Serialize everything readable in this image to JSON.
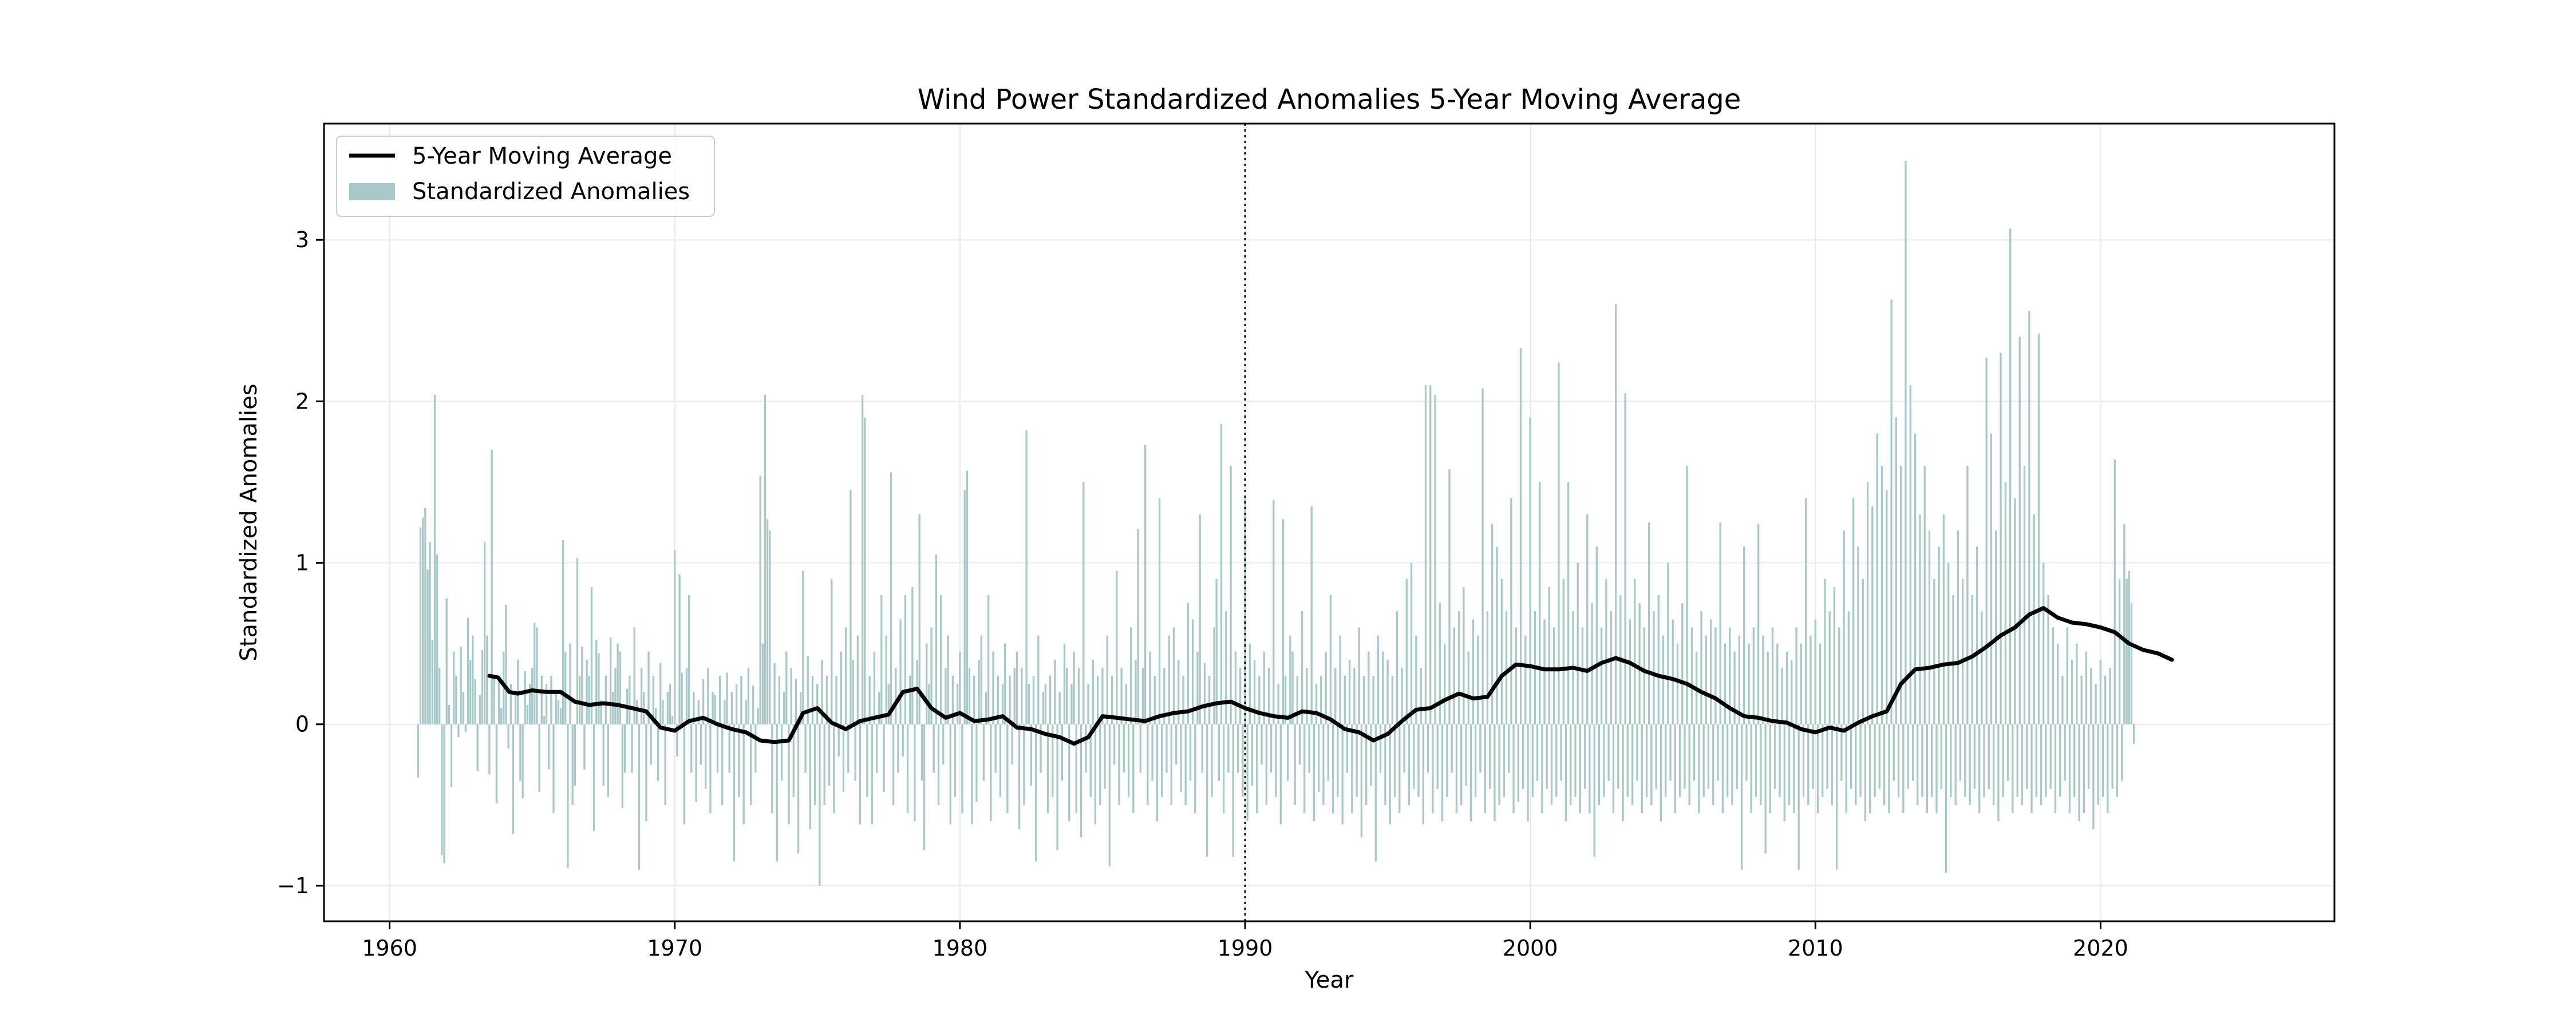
{
  "chart_data": {
    "type": "bar",
    "title": "Wind Power Standardized Anomalies 5-Year Moving Average",
    "xlabel": "Year",
    "ylabel": "Standardized Anomalies",
    "xlim": [
      1957.7,
      2028.2
    ],
    "ylim": [
      -1.22,
      3.72
    ],
    "x_ticks": [
      1960,
      1970,
      1980,
      1990,
      2000,
      2010,
      2020
    ],
    "y_ticks": [
      -1,
      0,
      1,
      2,
      3
    ],
    "grid": true,
    "legend_position": "upper-left",
    "vertical_line": {
      "x": 1990,
      "style": "dotted"
    },
    "colors": {
      "bars": "#a9c9c8",
      "moving_average": "#000000"
    },
    "series": [
      {
        "name": "Standardized Anomalies",
        "kind": "monthly-bars",
        "start": 1961.0,
        "step": 0.08333,
        "values": [
          -0.33,
          1.22,
          1.28,
          1.34,
          0.96,
          1.13,
          0.52,
          2.04,
          1.05,
          0.35,
          -0.81,
          -0.86,
          0.78,
          0.12,
          -0.39,
          0.45,
          0.3,
          -0.08,
          0.48,
          0.2,
          -0.05,
          0.66,
          0.4,
          0.55,
          0.28,
          -0.29,
          0.18,
          0.46,
          1.13,
          0.55,
          -0.31,
          1.7,
          0.3,
          -0.49,
          0.3,
          0.1,
          0.45,
          0.74,
          -0.15,
          0.25,
          -0.68,
          0.2,
          0.4,
          -0.35,
          -0.46,
          0.33,
          0.12,
          0.25,
          0.35,
          0.63,
          0.6,
          -0.42,
          0.3,
          0.05,
          0.25,
          -0.28,
          0.3,
          -0.55,
          0.2,
          0.15,
          0.1,
          1.14,
          0.45,
          -0.89,
          0.5,
          -0.5,
          -0.38,
          1.03,
          0.3,
          0.48,
          -0.28,
          0.4,
          0.3,
          0.85,
          -0.66,
          0.52,
          0.44,
          0.15,
          -0.38,
          0.3,
          -0.45,
          0.54,
          0.2,
          0.35,
          0.5,
          0.45,
          -0.52,
          -0.3,
          0.22,
          0.3,
          -0.3,
          0.6,
          0.15,
          -0.9,
          0.35,
          0.2,
          -0.6,
          0.45,
          -0.25,
          0.3,
          0.1,
          -0.35,
          0.38,
          0.15,
          -0.5,
          0.2,
          0.25,
          0.05,
          1.08,
          -0.2,
          0.93,
          0.32,
          -0.62,
          0.35,
          0.8,
          -0.3,
          0.2,
          -0.48,
          0.15,
          -0.25,
          0.28,
          -0.4,
          0.35,
          -0.55,
          0.2,
          0.18,
          -0.3,
          0.3,
          -0.5,
          0.15,
          0.32,
          -0.3,
          0.2,
          -0.85,
          0.25,
          -0.45,
          0.3,
          -0.62,
          0.15,
          0.35,
          -0.5,
          0.24,
          -0.3,
          0.1,
          1.54,
          0.5,
          2.04,
          1.27,
          1.2,
          -0.55,
          0.38,
          -0.85,
          0.3,
          -0.35,
          0.2,
          0.45,
          -0.62,
          0.35,
          -0.45,
          0.28,
          -0.8,
          0.2,
          0.95,
          -0.3,
          0.42,
          -0.65,
          0.3,
          -0.5,
          0.25,
          -1.0,
          0.4,
          -0.5,
          0.3,
          -0.38,
          0.9,
          -0.55,
          0.3,
          -0.2,
          0.45,
          -0.42,
          0.6,
          -0.3,
          1.45,
          0.4,
          -0.35,
          0.55,
          -0.62,
          2.04,
          1.9,
          -0.45,
          0.3,
          -0.62,
          0.45,
          -0.3,
          0.2,
          0.8,
          -0.42,
          0.55,
          0.25,
          1.56,
          -0.5,
          0.35,
          -0.3,
          0.65,
          -0.2,
          0.8,
          -0.55,
          0.3,
          0.85,
          -0.6,
          0.4,
          1.3,
          -0.35,
          -0.78,
          0.5,
          0.25,
          0.6,
          -0.3,
          1.05,
          -0.5,
          0.8,
          -0.25,
          0.35,
          0.55,
          -0.62,
          0.3,
          -0.45,
          0.25,
          0.45,
          -0.55,
          1.45,
          1.57,
          0.35,
          -0.62,
          0.3,
          -0.48,
          0.4,
          0.55,
          -0.35,
          0.2,
          0.8,
          -0.6,
          0.45,
          -0.3,
          0.3,
          -0.45,
          0.25,
          0.5,
          -0.55,
          0.3,
          -0.25,
          0.35,
          0.45,
          -0.65,
          0.35,
          -0.5,
          1.82,
          0.25,
          -0.38,
          0.3,
          -0.85,
          0.55,
          -0.3,
          0.2,
          0.25,
          -0.55,
          0.3,
          -0.45,
          0.4,
          -0.78,
          0.2,
          -0.35,
          0.5,
          0.35,
          -0.6,
          0.25,
          0.45,
          -0.55,
          0.35,
          -0.7,
          1.5,
          -0.3,
          0.25,
          -0.45,
          0.4,
          -0.62,
          0.3,
          -0.5,
          0.35,
          -0.4,
          0.55,
          -0.88,
          0.3,
          -0.25,
          0.95,
          -0.5,
          0.35,
          -0.3,
          0.25,
          -0.45,
          0.6,
          -0.55,
          0.4,
          1.21,
          -0.3,
          0.35,
          1.73,
          -0.5,
          0.45,
          -0.35,
          0.3,
          -0.6,
          1.4,
          -0.45,
          0.35,
          -0.3,
          0.55,
          -0.5,
          0.6,
          -0.25,
          0.4,
          -0.42,
          0.3,
          -0.5,
          0.75,
          -0.35,
          0.65,
          -0.55,
          0.45,
          1.3,
          -0.3,
          0.38,
          -0.82,
          0.3,
          -0.45,
          0.6,
          0.9,
          -0.35,
          1.86,
          -0.55,
          0.7,
          -0.3,
          1.6,
          -0.82,
          0.45,
          -0.3,
          0.35,
          -0.45,
          1.4,
          -0.6,
          0.5,
          -0.38,
          0.4,
          -0.55,
          0.3,
          -0.25,
          0.45,
          -0.5,
          0.35,
          -0.3,
          1.39,
          -0.45,
          0.25,
          -0.62,
          1.27,
          0.3,
          -0.35,
          0.55,
          0.45,
          -0.5,
          0.3,
          -0.25,
          0.7,
          -0.55,
          0.35,
          -0.3,
          1.35,
          -0.6,
          0.25,
          -0.42,
          0.3,
          -0.5,
          0.45,
          -0.35,
          0.8,
          -0.55,
          0.35,
          -0.45,
          0.55,
          -0.62,
          0.3,
          -0.3,
          0.4,
          -0.55,
          0.35,
          -0.45,
          0.6,
          -0.7,
          0.3,
          -0.5,
          0.45,
          -0.38,
          0.3,
          -0.85,
          0.55,
          -0.3,
          0.45,
          -0.5,
          0.4,
          -0.62,
          0.3,
          -0.45,
          0.7,
          -0.55,
          0.35,
          -0.3,
          0.9,
          -0.5,
          1.0,
          -0.4,
          0.55,
          -0.45,
          0.35,
          -0.62,
          2.1,
          -0.3,
          2.1,
          -0.55,
          2.04,
          -0.4,
          0.75,
          -0.6,
          0.5,
          -0.45,
          1.58,
          -0.3,
          0.6,
          -0.55,
          0.7,
          -0.5,
          0.85,
          -0.38,
          0.45,
          -0.6,
          0.65,
          -0.45,
          0.55,
          -0.3,
          2.08,
          -0.55,
          0.7,
          -0.4,
          1.24,
          -0.6,
          1.1,
          -0.5,
          0.9,
          -0.45,
          0.7,
          -0.3,
          1.4,
          -0.55,
          0.6,
          -0.48,
          2.33,
          -0.4,
          0.55,
          -0.6,
          1.9,
          -0.45,
          0.7,
          -0.35,
          1.5,
          -0.55,
          0.65,
          -0.4,
          0.85,
          -0.5,
          0.6,
          -0.45,
          2.24,
          -0.35,
          0.9,
          -0.6,
          1.5,
          -0.5,
          0.7,
          -0.45,
          1.0,
          -0.55,
          0.6,
          -0.4,
          1.3,
          -0.55,
          0.75,
          -0.82,
          1.1,
          -0.5,
          0.6,
          -0.45,
          0.9,
          -0.35,
          0.7,
          -0.55,
          2.6,
          -0.4,
          0.8,
          -0.6,
          2.05,
          -0.45,
          0.65,
          -0.5,
          0.9,
          -0.35,
          0.75,
          -0.55,
          0.6,
          -0.45,
          1.25,
          -0.5,
          0.7,
          -0.4,
          0.8,
          -0.6,
          0.55,
          -0.45,
          1.0,
          -0.35,
          0.65,
          -0.55,
          0.5,
          -0.45,
          0.75,
          -0.4,
          1.6,
          -0.5,
          0.6,
          -0.35,
          0.45,
          -0.55,
          0.7,
          -0.45,
          0.55,
          -0.4,
          0.65,
          -0.5,
          0.6,
          -0.35,
          1.25,
          -0.55,
          0.5,
          -0.45,
          0.6,
          -0.5,
          0.45,
          -0.4,
          0.55,
          -0.9,
          1.1,
          -0.35,
          0.5,
          -0.55,
          0.6,
          -0.45,
          1.24,
          -0.5,
          0.55,
          -0.8,
          0.45,
          -0.55,
          0.6,
          -0.4,
          0.5,
          -0.45,
          0.35,
          -0.6,
          0.45,
          -0.5,
          0.4,
          -0.55,
          0.6,
          -0.9,
          0.5,
          -0.45,
          1.4,
          -0.5,
          0.55,
          -0.4,
          0.65,
          -0.55,
          0.5,
          -0.45,
          0.9,
          -0.4,
          0.7,
          -0.5,
          0.85,
          -0.9,
          0.6,
          -0.35,
          1.2,
          -0.55,
          0.7,
          -0.4,
          1.4,
          -0.5,
          1.1,
          -0.45,
          0.9,
          -0.6,
          1.5,
          -0.55,
          1.35,
          -0.45,
          1.8,
          -0.4,
          1.6,
          -0.5,
          1.45,
          -0.55,
          2.63,
          -0.35,
          1.9,
          -0.45,
          1.6,
          -0.55,
          3.49,
          -0.4,
          2.1,
          -0.35,
          1.8,
          -0.5,
          1.3,
          -0.45,
          1.6,
          -0.55,
          1.2,
          -0.45,
          0.9,
          -0.55,
          1.1,
          -0.4,
          1.3,
          -0.92,
          1.0,
          -0.45,
          0.8,
          -0.5,
          1.2,
          -0.35,
          0.9,
          -0.45,
          1.6,
          -0.5,
          0.8,
          -0.4,
          1.1,
          -0.55,
          0.7,
          -0.45,
          2.27,
          -0.4,
          1.8,
          -0.5,
          1.2,
          -0.6,
          2.3,
          -0.45,
          1.5,
          -0.35,
          3.07,
          -0.55,
          1.4,
          -0.45,
          2.4,
          -0.5,
          1.6,
          -0.4,
          2.56,
          -0.55,
          1.3,
          -0.45,
          2.42,
          -0.5,
          1.0,
          -0.45,
          0.8,
          -0.4,
          0.6,
          -0.55,
          0.5,
          -0.45,
          0.3,
          -0.35,
          0.6,
          -0.55,
          0.4,
          -0.45,
          0.5,
          -0.6,
          0.3,
          -0.55,
          0.45,
          -0.4,
          0.35,
          -0.65,
          0.25,
          -0.5,
          0.4,
          -0.45,
          0.3,
          -0.55,
          0.35,
          -0.4,
          1.64,
          -0.45,
          0.9,
          -0.35,
          1.24,
          0.9,
          0.95,
          0.75,
          -0.12
        ]
      },
      {
        "name": "5-Year Moving Average",
        "kind": "line",
        "x": [
          1963.5,
          1963.8,
          1964.2,
          1964.5,
          1965.0,
          1965.5,
          1966.0,
          1966.5,
          1967.0,
          1967.5,
          1968.0,
          1968.5,
          1969.0,
          1969.5,
          1970.0,
          1970.5,
          1971.0,
          1971.5,
          1972.0,
          1972.5,
          1973.0,
          1973.5,
          1974.0,
          1974.5,
          1975.0,
          1975.5,
          1976.0,
          1976.5,
          1977.0,
          1977.5,
          1978.0,
          1978.5,
          1979.0,
          1979.5,
          1980.0,
          1980.5,
          1981.0,
          1981.5,
          1982.0,
          1982.5,
          1983.0,
          1983.5,
          1984.0,
          1984.5,
          1985.0,
          1985.5,
          1986.0,
          1986.5,
          1987.0,
          1987.5,
          1988.0,
          1988.5,
          1989.0,
          1989.5,
          1990.0,
          1990.5,
          1991.0,
          1991.5,
          1992.0,
          1992.5,
          1993.0,
          1993.5,
          1994.0,
          1994.5,
          1995.0,
          1995.5,
          1996.0,
          1996.5,
          1997.0,
          1997.5,
          1998.0,
          1998.5,
          1999.0,
          1999.5,
          2000.0,
          2000.5,
          2001.0,
          2001.5,
          2002.0,
          2002.5,
          2003.0,
          2003.5,
          2004.0,
          2004.5,
          2005.0,
          2005.5,
          2006.0,
          2006.5,
          2007.0,
          2007.5,
          2008.0,
          2008.5,
          2009.0,
          2009.5,
          2010.0,
          2010.5,
          2011.0,
          2011.5,
          2012.0,
          2012.5,
          2013.0,
          2013.5,
          2014.0,
          2014.5,
          2015.0,
          2015.5,
          2016.0,
          2016.5,
          2017.0,
          2017.5,
          2018.0,
          2018.5,
          2019.0,
          2019.5,
          2020.0,
          2020.5,
          2021.0,
          2021.5,
          2022.0,
          2022.5
        ],
        "values": [
          0.3,
          0.29,
          0.2,
          0.19,
          0.21,
          0.2,
          0.2,
          0.14,
          0.12,
          0.13,
          0.12,
          0.1,
          0.08,
          -0.02,
          -0.04,
          0.02,
          0.04,
          0.0,
          -0.03,
          -0.05,
          -0.1,
          -0.11,
          -0.1,
          0.07,
          0.1,
          0.01,
          -0.03,
          0.02,
          0.04,
          0.06,
          0.2,
          0.22,
          0.1,
          0.04,
          0.07,
          0.02,
          0.03,
          0.05,
          -0.02,
          -0.03,
          -0.06,
          -0.08,
          -0.12,
          -0.08,
          0.05,
          0.04,
          0.03,
          0.02,
          0.05,
          0.07,
          0.08,
          0.11,
          0.13,
          0.14,
          0.1,
          0.07,
          0.05,
          0.04,
          0.08,
          0.07,
          0.03,
          -0.03,
          -0.05,
          -0.1,
          -0.06,
          0.02,
          0.09,
          0.1,
          0.15,
          0.19,
          0.16,
          0.17,
          0.3,
          0.37,
          0.36,
          0.34,
          0.34,
          0.35,
          0.33,
          0.38,
          0.41,
          0.38,
          0.33,
          0.3,
          0.28,
          0.25,
          0.2,
          0.16,
          0.1,
          0.05,
          0.04,
          0.02,
          0.01,
          -0.03,
          -0.05,
          -0.02,
          -0.04,
          0.01,
          0.05,
          0.08,
          0.25,
          0.34,
          0.35,
          0.37,
          0.38,
          0.42,
          0.48,
          0.55,
          0.6,
          0.68,
          0.72,
          0.66,
          0.63,
          0.62,
          0.6,
          0.57,
          0.5,
          0.46,
          0.44,
          0.4
        ]
      }
    ],
    "legend": {
      "line_label": "5-Year Moving Average",
      "bar_label": "Standardized Anomalies"
    }
  }
}
